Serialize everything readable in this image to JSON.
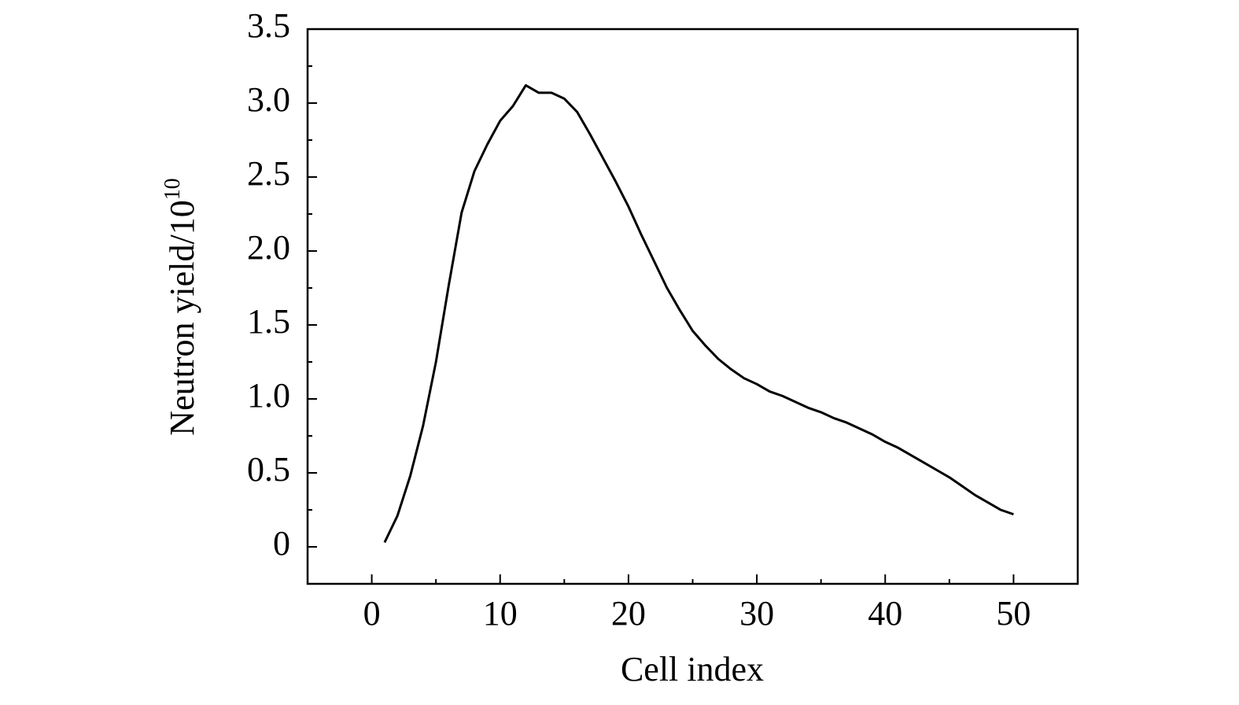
{
  "chart_data": {
    "type": "line",
    "xlabel": "Cell index",
    "ylabel": "Neutron yield/10",
    "ylabel_sup": "10",
    "x": [
      1,
      2,
      3,
      4,
      5,
      6,
      7,
      8,
      9,
      10,
      11,
      12,
      13,
      14,
      15,
      16,
      17,
      18,
      19,
      20,
      21,
      22,
      23,
      24,
      25,
      26,
      27,
      28,
      29,
      30,
      31,
      32,
      33,
      34,
      35,
      36,
      37,
      38,
      39,
      40,
      41,
      42,
      43,
      44,
      45,
      46,
      47,
      48,
      49,
      50
    ],
    "series": [
      {
        "name": "Neutron yield",
        "color": "#000000",
        "values": [
          0.03,
          0.21,
          0.48,
          0.82,
          1.25,
          1.77,
          2.26,
          2.54,
          2.72,
          2.88,
          2.98,
          3.12,
          3.07,
          3.07,
          3.03,
          2.94,
          2.79,
          2.63,
          2.47,
          2.3,
          2.11,
          1.93,
          1.75,
          1.6,
          1.46,
          1.36,
          1.27,
          1.2,
          1.14,
          1.1,
          1.05,
          1.02,
          0.98,
          0.94,
          0.91,
          0.87,
          0.84,
          0.8,
          0.76,
          0.71,
          0.67,
          0.62,
          0.57,
          0.52,
          0.47,
          0.41,
          0.35,
          0.3,
          0.25,
          0.22
        ]
      }
    ],
    "xlim": [
      -5,
      55
    ],
    "ylim": [
      -0.25,
      3.5
    ],
    "xticks": [
      0,
      10,
      20,
      30,
      40,
      50
    ],
    "xminorticks": [
      5,
      15,
      25,
      35,
      45
    ],
    "yticks": [
      0,
      0.5,
      {
        "value": 1,
        "label": "1.0"
      },
      1.5,
      {
        "value": 2,
        "label": "2.0"
      },
      2.5,
      {
        "value": 3,
        "label": "3.0"
      },
      3.5
    ],
    "yminorticks": [
      0.25,
      0.75,
      1.25,
      1.75,
      2.25,
      2.75,
      3.25
    ],
    "grid": false
  }
}
